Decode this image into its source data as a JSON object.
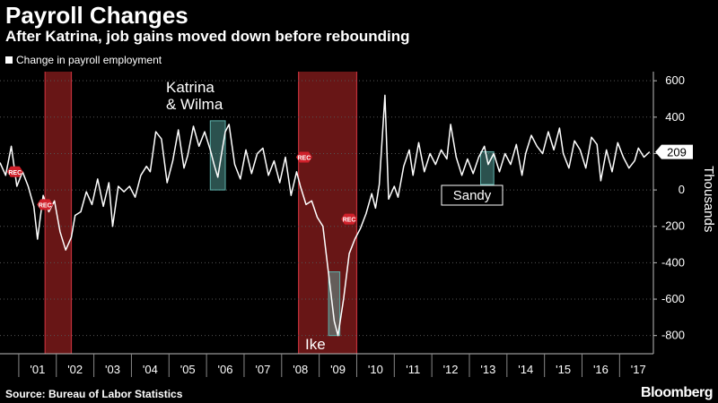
{
  "header": {
    "title": "Payroll Changes",
    "subtitle": "After Katrina, job gains moved down before rebounding"
  },
  "legend": {
    "label": "Change in payroll employment"
  },
  "footer": {
    "source": "Source: Bureau of Labor Statistics",
    "logo": "Bloomberg"
  },
  "colors": {
    "background": "#000000",
    "line": "#ffffff",
    "recession": "#7a1a1a",
    "highlight": "#5fb3ad",
    "rec_marker": "#d0202a"
  },
  "chart_data": {
    "type": "line",
    "ylabel": "Thousands",
    "ylim": [
      -900,
      650
    ],
    "xlim": [
      2000.0,
      2017.4
    ],
    "y_ticks": [
      600,
      400,
      200,
      0,
      -200,
      -400,
      -600,
      -800
    ],
    "y_tick_labels": [
      "600",
      "400",
      "200",
      "0",
      "-200",
      "-400",
      "-600",
      "-800"
    ],
    "x_tick_labels": [
      {
        "x": 2001,
        "label": "'01"
      },
      {
        "x": 2002,
        "label": "'02"
      },
      {
        "x": 2003,
        "label": "'03"
      },
      {
        "x": 2004,
        "label": "'04"
      },
      {
        "x": 2005,
        "label": "'05"
      },
      {
        "x": 2006,
        "label": "'06"
      },
      {
        "x": 2007,
        "label": "'07"
      },
      {
        "x": 2008,
        "label": "'08"
      },
      {
        "x": 2009,
        "label": "'09"
      },
      {
        "x": 2010,
        "label": "'10"
      },
      {
        "x": 2011,
        "label": "'11"
      },
      {
        "x": 2012,
        "label": "'12"
      },
      {
        "x": 2013,
        "label": "'13"
      },
      {
        "x": 2014,
        "label": "'14"
      },
      {
        "x": 2015,
        "label": "'15"
      },
      {
        "x": 2016,
        "label": "'16"
      },
      {
        "x": 2017,
        "label": "'17"
      }
    ],
    "last_value_label": "209",
    "recessions": [
      {
        "start": 2001.2,
        "end": 2001.9
      },
      {
        "start": 2007.95,
        "end": 2009.5
      }
    ],
    "rec_markers": [
      {
        "x": 2000.4,
        "y": 100,
        "label": "REC"
      },
      {
        "x": 2001.2,
        "y": -80,
        "label": "REC"
      },
      {
        "x": 2008.1,
        "y": 180,
        "label": "REC"
      },
      {
        "x": 2009.3,
        "y": -160,
        "label": "REC"
      }
    ],
    "annotations": [
      {
        "label_lines": [
          "Katrina",
          "& Wilma"
        ],
        "box": {
          "x0": 2005.6,
          "x1": 2006.0,
          "y0": 0,
          "y1": 380
        }
      },
      {
        "label_lines": [
          "Ike"
        ],
        "box": {
          "x0": 2008.75,
          "x1": 2009.05,
          "y0": -800,
          "y1": -450
        }
      },
      {
        "label_lines": [
          "Sandy"
        ],
        "box": {
          "x0": 2012.8,
          "x1": 2013.15,
          "y0": 30,
          "y1": 210
        }
      }
    ],
    "series": [
      {
        "name": "Change in payroll employment",
        "points": [
          [
            2000.0,
            150
          ],
          [
            2000.15,
            80
          ],
          [
            2000.3,
            240
          ],
          [
            2000.45,
            20
          ],
          [
            2000.6,
            100
          ],
          [
            2000.75,
            20
          ],
          [
            2000.9,
            -90
          ],
          [
            2001.0,
            -270
          ],
          [
            2001.15,
            -30
          ],
          [
            2001.3,
            -120
          ],
          [
            2001.45,
            -60
          ],
          [
            2001.6,
            -230
          ],
          [
            2001.75,
            -330
          ],
          [
            2001.9,
            -260
          ],
          [
            2002.0,
            -140
          ],
          [
            2002.15,
            -120
          ],
          [
            2002.3,
            -10
          ],
          [
            2002.45,
            -80
          ],
          [
            2002.6,
            60
          ],
          [
            2002.75,
            -90
          ],
          [
            2002.9,
            40
          ],
          [
            2003.0,
            -200
          ],
          [
            2003.15,
            20
          ],
          [
            2003.3,
            -10
          ],
          [
            2003.45,
            20
          ],
          [
            2003.6,
            -40
          ],
          [
            2003.75,
            80
          ],
          [
            2003.9,
            130
          ],
          [
            2004.0,
            100
          ],
          [
            2004.15,
            320
          ],
          [
            2004.3,
            280
          ],
          [
            2004.45,
            40
          ],
          [
            2004.6,
            160
          ],
          [
            2004.75,
            330
          ],
          [
            2004.9,
            120
          ],
          [
            2005.0,
            190
          ],
          [
            2005.15,
            350
          ],
          [
            2005.3,
            240
          ],
          [
            2005.45,
            320
          ],
          [
            2005.6,
            220
          ],
          [
            2005.7,
            140
          ],
          [
            2005.8,
            70
          ],
          [
            2005.9,
            200
          ],
          [
            2006.0,
            320
          ],
          [
            2006.1,
            360
          ],
          [
            2006.25,
            140
          ],
          [
            2006.4,
            60
          ],
          [
            2006.55,
            220
          ],
          [
            2006.7,
            90
          ],
          [
            2006.85,
            200
          ],
          [
            2007.0,
            230
          ],
          [
            2007.15,
            80
          ],
          [
            2007.3,
            160
          ],
          [
            2007.45,
            40
          ],
          [
            2007.6,
            180
          ],
          [
            2007.75,
            -30
          ],
          [
            2007.9,
            100
          ],
          [
            2008.0,
            20
          ],
          [
            2008.15,
            -80
          ],
          [
            2008.3,
            -60
          ],
          [
            2008.45,
            -150
          ],
          [
            2008.6,
            -200
          ],
          [
            2008.75,
            -460
          ],
          [
            2008.9,
            -720
          ],
          [
            2009.0,
            -800
          ],
          [
            2009.15,
            -600
          ],
          [
            2009.3,
            -350
          ],
          [
            2009.45,
            -270
          ],
          [
            2009.6,
            -210
          ],
          [
            2009.75,
            -130
          ],
          [
            2009.9,
            -20
          ],
          [
            2010.0,
            -100
          ],
          [
            2010.1,
            30
          ],
          [
            2010.25,
            520
          ],
          [
            2010.35,
            -50
          ],
          [
            2010.5,
            20
          ],
          [
            2010.6,
            -40
          ],
          [
            2010.75,
            130
          ],
          [
            2010.9,
            220
          ],
          [
            2011.0,
            80
          ],
          [
            2011.15,
            260
          ],
          [
            2011.3,
            100
          ],
          [
            2011.45,
            200
          ],
          [
            2011.6,
            140
          ],
          [
            2011.75,
            220
          ],
          [
            2011.9,
            170
          ],
          [
            2012.0,
            360
          ],
          [
            2012.15,
            180
          ],
          [
            2012.3,
            80
          ],
          [
            2012.45,
            170
          ],
          [
            2012.6,
            90
          ],
          [
            2012.75,
            180
          ],
          [
            2012.9,
            240
          ],
          [
            2013.0,
            140
          ],
          [
            2013.15,
            200
          ],
          [
            2013.3,
            100
          ],
          [
            2013.45,
            200
          ],
          [
            2013.6,
            140
          ],
          [
            2013.75,
            250
          ],
          [
            2013.9,
            80
          ],
          [
            2014.0,
            200
          ],
          [
            2014.15,
            300
          ],
          [
            2014.3,
            240
          ],
          [
            2014.45,
            200
          ],
          [
            2014.6,
            320
          ],
          [
            2014.75,
            220
          ],
          [
            2014.9,
            340
          ],
          [
            2015.0,
            200
          ],
          [
            2015.15,
            120
          ],
          [
            2015.3,
            270
          ],
          [
            2015.45,
            220
          ],
          [
            2015.6,
            120
          ],
          [
            2015.75,
            290
          ],
          [
            2015.9,
            250
          ],
          [
            2016.0,
            50
          ],
          [
            2016.15,
            220
          ],
          [
            2016.3,
            100
          ],
          [
            2016.45,
            260
          ],
          [
            2016.6,
            180
          ],
          [
            2016.75,
            120
          ],
          [
            2016.9,
            160
          ],
          [
            2017.0,
            230
          ],
          [
            2017.15,
            180
          ],
          [
            2017.3,
            209
          ]
        ]
      }
    ]
  }
}
